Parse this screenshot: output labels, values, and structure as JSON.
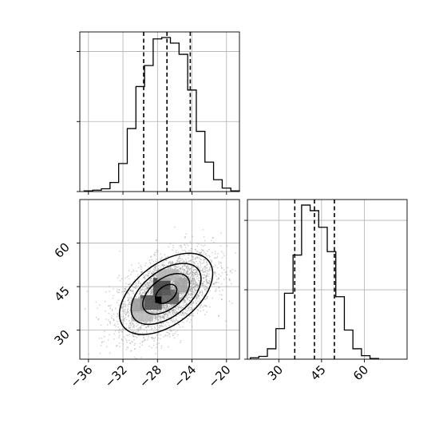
{
  "chart_data": [
    {
      "panel": "x-marginal",
      "type": "histogram",
      "grid": true,
      "xlim": [
        -37,
        -18.5
      ],
      "show_x_tick_labels": false,
      "show_y_tick_labels": false,
      "bins": [
        {
          "x0": -36.5,
          "x1": -35.5,
          "count": 1
        },
        {
          "x0": -35.5,
          "x1": -34.5,
          "count": 2
        },
        {
          "x0": -34.5,
          "x1": -33.5,
          "count": 4
        },
        {
          "x0": -33.5,
          "x1": -32.5,
          "count": 13
        },
        {
          "x0": -32.5,
          "x1": -31.5,
          "count": 40
        },
        {
          "x0": -31.5,
          "x1": -30.5,
          "count": 90
        },
        {
          "x0": -30.5,
          "x1": -29.5,
          "count": 150
        },
        {
          "x0": -29.5,
          "x1": -28.5,
          "count": 180
        },
        {
          "x0": -28.5,
          "x1": -27.5,
          "count": 218
        },
        {
          "x0": -27.5,
          "x1": -26.5,
          "count": 220
        },
        {
          "x0": -26.5,
          "x1": -25.5,
          "count": 212
        },
        {
          "x0": -25.5,
          "x1": -24.5,
          "count": 196
        },
        {
          "x0": -24.5,
          "x1": -23.5,
          "count": 145
        },
        {
          "x0": -23.5,
          "x1": -22.5,
          "count": 86
        },
        {
          "x0": -22.5,
          "x1": -21.5,
          "count": 42
        },
        {
          "x0": -21.5,
          "x1": -20.5,
          "count": 17
        },
        {
          "x0": -20.5,
          "x1": -19.5,
          "count": 5
        },
        {
          "x0": -19.5,
          "x1": -18.5,
          "count": 1
        }
      ],
      "ymax": 228,
      "yticks": [
        0,
        100,
        200
      ],
      "quantile_lines": [
        -29.6,
        -26.9,
        -24.2
      ]
    },
    {
      "panel": "y-marginal",
      "type": "histogram",
      "grid": true,
      "xlim": [
        19,
        75
      ],
      "xticks": [
        30,
        45,
        60
      ],
      "xtick_labels": [
        "30",
        "45",
        "60"
      ],
      "show_y_tick_labels": false,
      "bins": [
        {
          "x0": 20,
          "x1": 23,
          "count": 2
        },
        {
          "x0": 23,
          "x1": 26,
          "count": 4
        },
        {
          "x0": 26,
          "x1": 29,
          "count": 15
        },
        {
          "x0": 29,
          "x1": 32,
          "count": 44
        },
        {
          "x0": 32,
          "x1": 35,
          "count": 95
        },
        {
          "x0": 35,
          "x1": 38,
          "count": 150
        },
        {
          "x0": 38,
          "x1": 41,
          "count": 222
        },
        {
          "x0": 41,
          "x1": 44,
          "count": 214
        },
        {
          "x0": 44,
          "x1": 47,
          "count": 190
        },
        {
          "x0": 47,
          "x1": 50,
          "count": 155
        },
        {
          "x0": 50,
          "x1": 53,
          "count": 90
        },
        {
          "x0": 53,
          "x1": 56,
          "count": 42
        },
        {
          "x0": 56,
          "x1": 59,
          "count": 15
        },
        {
          "x0": 59,
          "x1": 62,
          "count": 5
        },
        {
          "x0": 62,
          "x1": 65,
          "count": 1
        }
      ],
      "ymax": 230,
      "yticks": [
        0,
        100,
        200
      ],
      "quantile_lines": [
        35.6,
        42.5,
        49.5
      ]
    },
    {
      "panel": "joint",
      "type": "scatter-density-contour",
      "grid": true,
      "xlim": [
        -37,
        -18.5
      ],
      "ylim": [
        20,
        75
      ],
      "xticks": [
        -36,
        -32,
        -28,
        -24,
        -20
      ],
      "xtick_labels": [
        "−36",
        "−32",
        "−28",
        "−24",
        "−20"
      ],
      "yticks": [
        30,
        45,
        60
      ],
      "ytick_labels": [
        "30",
        "45",
        "60"
      ],
      "point_cloud": {
        "center_x": -27,
        "center_y": 42.5,
        "sd_x": 2.7,
        "sd_y": 7,
        "correlation": 0.5,
        "count": 3500
      },
      "contour_levels_sigma": [
        0.5,
        1,
        1.5,
        2
      ],
      "density_cells": [
        {
          "x0": -28.5,
          "x1": -26.5,
          "y0": 42,
          "y1": 48,
          "shade": "#3a3a3a"
        },
        {
          "x0": -30,
          "x1": -27.5,
          "y0": 37,
          "y1": 42,
          "shade": "#4a4a4a"
        },
        {
          "x0": -27.5,
          "x1": -25.5,
          "y0": 39,
          "y1": 44,
          "shade": "#5c5c5c"
        },
        {
          "x0": -31,
          "x1": -29.5,
          "y0": 36,
          "y1": 41,
          "shade": "#9a9a9a"
        },
        {
          "x0": -26,
          "x1": -24.5,
          "y0": 43,
          "y1": 48,
          "shade": "#a0a0a0"
        },
        {
          "x0": -28,
          "x1": -25.5,
          "y0": 47,
          "y1": 51,
          "shade": "#b3b3b3"
        },
        {
          "x0": -31,
          "x1": -28.5,
          "y0": 33,
          "y1": 36.5,
          "shade": "#b8b8b8"
        }
      ],
      "peak_marker": {
        "x": -27.9,
        "y": 40.5
      }
    }
  ],
  "colors": {
    "axes_edge": "#000000",
    "grid": "#b0b0b0",
    "line": "#000000",
    "points": "#9a9a9a"
  }
}
